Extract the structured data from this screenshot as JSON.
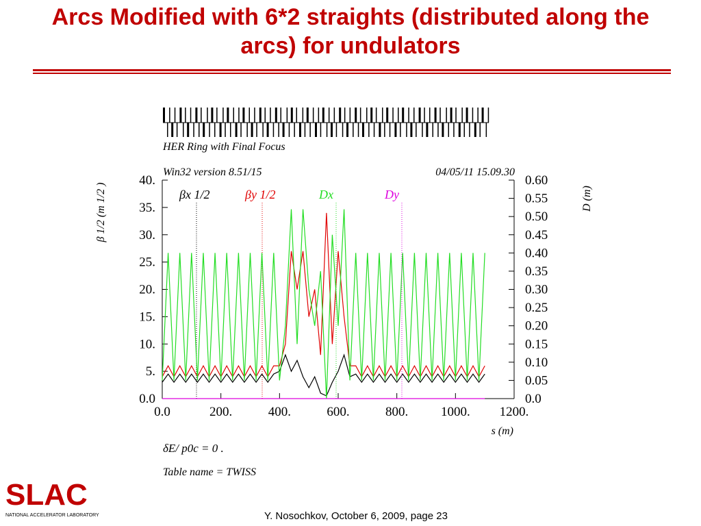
{
  "title": "Arcs Modified with 6*2 straights (distributed along the arcs) for undulators",
  "footer": "Y. Nosochkov, October 6, 2009,  page 23",
  "logo": {
    "name": "SLAC",
    "subtitle": "NATIONAL ACCELERATOR LABORATORY"
  },
  "chart_data": {
    "type": "line",
    "title": "HER Ring with Final Focus",
    "version": "Win32 version 8.51/15",
    "timestamp": "04/05/11  15.09.30",
    "x_label": "s (m)",
    "y_label": "β 1/2 (m 1/2 )",
    "y2_label": "D (m)",
    "notes": [
      "δE/ p0c  =  0 .",
      "Table name = TWISS"
    ],
    "x": [
      0,
      20,
      40,
      60,
      80,
      100,
      120,
      140,
      160,
      180,
      200,
      220,
      240,
      260,
      280,
      300,
      320,
      340,
      360,
      380,
      400,
      420,
      440,
      460,
      480,
      500,
      520,
      540,
      560,
      580,
      600,
      620,
      640,
      660,
      680,
      700,
      720,
      740,
      760,
      780,
      800,
      820,
      840,
      860,
      880,
      900,
      920,
      940,
      960,
      980,
      1000,
      1020,
      1040,
      1060,
      1080,
      1100
    ],
    "xlim": [
      0,
      1200
    ],
    "xticks": [
      {
        "value": 0,
        "label": "0.0"
      },
      {
        "value": 200,
        "label": "200."
      },
      {
        "value": 400,
        "label": "400."
      },
      {
        "value": 600,
        "label": "600."
      },
      {
        "value": 800,
        "label": "800."
      },
      {
        "value": 1000,
        "label": "1000."
      },
      {
        "value": 1200,
        "label": "1200."
      }
    ],
    "ylim": [
      0,
      40
    ],
    "yticks": [
      {
        "value": 0,
        "label": "0.0"
      },
      {
        "value": 5,
        "label": "5."
      },
      {
        "value": 10,
        "label": "10."
      },
      {
        "value": 15,
        "label": "15."
      },
      {
        "value": 20,
        "label": "20."
      },
      {
        "value": 25,
        "label": "25."
      },
      {
        "value": 30,
        "label": "30."
      },
      {
        "value": 35,
        "label": "35."
      },
      {
        "value": 40,
        "label": "40."
      }
    ],
    "y2lim": [
      0,
      0.6
    ],
    "y2ticks": [
      {
        "value": 0,
        "label": "0.0"
      },
      {
        "value": 0.05,
        "label": "0.05"
      },
      {
        "value": 0.1,
        "label": "0.10"
      },
      {
        "value": 0.15,
        "label": "0.15"
      },
      {
        "value": 0.2,
        "label": "0.20"
      },
      {
        "value": 0.25,
        "label": "0.25"
      },
      {
        "value": 0.3,
        "label": "0.30"
      },
      {
        "value": 0.35,
        "label": "0.35"
      },
      {
        "value": 0.4,
        "label": "0.40"
      },
      {
        "value": 0.45,
        "label": "0.45"
      },
      {
        "value": 0.5,
        "label": "0.50"
      },
      {
        "value": 0.55,
        "label": "0.55"
      },
      {
        "value": 0.6,
        "label": "0.60"
      }
    ],
    "series": [
      {
        "name": "βx 1/2",
        "color": "#000000",
        "values": [
          3,
          4.5,
          3,
          4.5,
          3,
          4.5,
          3,
          4.5,
          3,
          4.5,
          3,
          4.5,
          3,
          4.5,
          3,
          4.5,
          3,
          4.5,
          3,
          4.5,
          5,
          8,
          5,
          7,
          4,
          2,
          4,
          1,
          0.5,
          3,
          5,
          8,
          4,
          4.5,
          3,
          4.5,
          3,
          4.5,
          3,
          4.5,
          3,
          4.5,
          3,
          4.5,
          3,
          4.5,
          3,
          4.5,
          3,
          4.5,
          3,
          4.5,
          3,
          4.5,
          3,
          4.5
        ]
      },
      {
        "name": "βy 1/2",
        "color": "#e00000",
        "values": [
          4,
          6,
          4,
          6,
          4,
          6,
          4,
          6,
          4,
          6,
          4,
          6,
          4,
          6,
          4,
          6,
          4,
          6,
          4,
          6,
          6,
          10,
          27,
          20,
          27,
          15,
          20,
          8,
          34,
          10,
          27,
          15,
          6,
          6,
          4,
          6,
          4,
          6,
          4,
          6,
          4,
          6,
          4,
          6,
          4,
          6,
          4,
          6,
          4,
          6,
          4,
          6,
          4,
          6,
          4,
          6
        ]
      },
      {
        "name": "Dx",
        "color": "#22dd22",
        "axis": "y2",
        "values": [
          0.05,
          0.4,
          0.05,
          0.4,
          0.05,
          0.4,
          0.05,
          0.4,
          0.05,
          0.4,
          0.05,
          0.4,
          0.05,
          0.4,
          0.05,
          0.4,
          0.05,
          0.4,
          0.05,
          0.4,
          0.05,
          0.2,
          0.52,
          0.15,
          0.52,
          0.3,
          0.2,
          0.35,
          0,
          0.45,
          0.2,
          0.52,
          0.05,
          0.4,
          0.05,
          0.4,
          0.05,
          0.4,
          0.05,
          0.4,
          0.05,
          0.4,
          0.05,
          0.4,
          0.05,
          0.4,
          0.05,
          0.4,
          0.05,
          0.4,
          0.05,
          0.4,
          0.05,
          0.4,
          0.05,
          0.4
        ]
      },
      {
        "name": "Dy",
        "color": "#dd00dd",
        "axis": "y2",
        "values": [
          0,
          0,
          0,
          0,
          0,
          0,
          0,
          0,
          0,
          0,
          0,
          0,
          0,
          0,
          0,
          0,
          0,
          0,
          0,
          0,
          0,
          0,
          0,
          0,
          0,
          0,
          0,
          0,
          0,
          0,
          0,
          0,
          0,
          0,
          0,
          0,
          0,
          0,
          0,
          0,
          0,
          0,
          0,
          0,
          0,
          0,
          0,
          0,
          0,
          0,
          0,
          0,
          0,
          0,
          0,
          0
        ]
      }
    ]
  }
}
